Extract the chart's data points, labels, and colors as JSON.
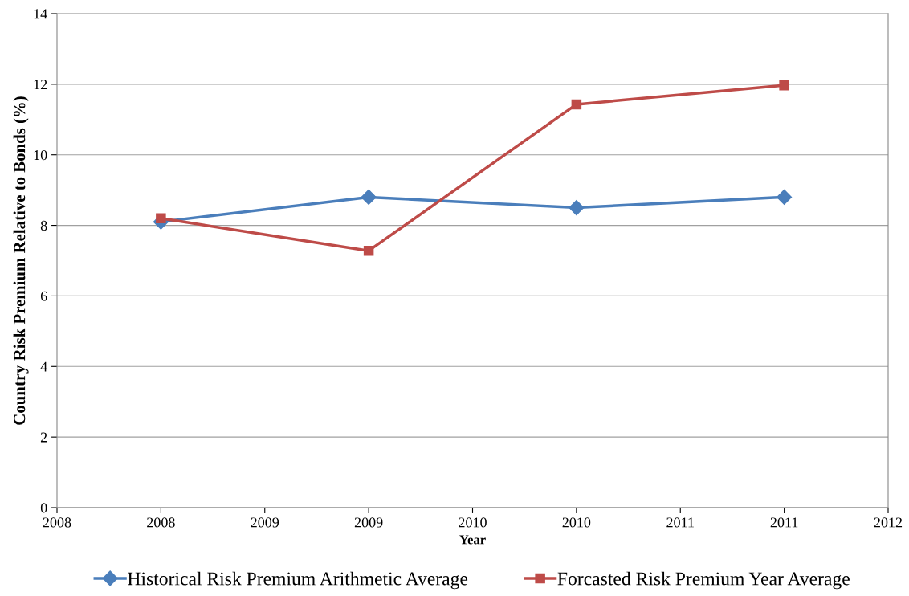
{
  "chart_data": {
    "type": "line",
    "xlabel": "Year",
    "ylabel": "Country Risk Premium Relative to Bonds (%)",
    "x": [
      2008.5,
      2009.5,
      2010.5,
      2011.5
    ],
    "series": [
      {
        "name": "Historical Risk Premium Arithmetic Average",
        "color": "#4a7ebb",
        "marker": "diamond",
        "values": [
          8.1,
          8.8,
          8.5,
          8.8
        ]
      },
      {
        "name": "Forcasted Risk Premium Year Average",
        "color": "#be4b48",
        "marker": "square",
        "values": [
          8.2,
          7.28,
          11.43,
          11.97
        ]
      }
    ],
    "xlim": [
      2008,
      2012
    ],
    "xticks": [
      2008,
      {
        "value": 2008.5,
        "label": "2008"
      },
      2009,
      {
        "value": 2009.5,
        "label": "2009"
      },
      2010,
      {
        "value": 2010.5,
        "label": "2010"
      },
      2011,
      {
        "value": 2011.5,
        "label": "2011"
      },
      2012
    ],
    "ylim": [
      0,
      14
    ],
    "yticks": [
      0,
      2,
      4,
      6,
      8,
      10,
      12,
      14
    ],
    "grid": "y",
    "legend": "bottom",
    "line_style": "solid"
  }
}
